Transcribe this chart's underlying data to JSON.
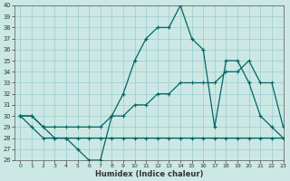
{
  "xlabel": "Humidex (Indice chaleur)",
  "bg_color": "#cce8e4",
  "grid_color": "#99cccc",
  "line_color": "#006666",
  "x_values": [
    0,
    1,
    2,
    3,
    4,
    5,
    6,
    7,
    8,
    9,
    10,
    11,
    12,
    13,
    14,
    15,
    16,
    17,
    18,
    19,
    20,
    21,
    22,
    23
  ],
  "line1": [
    30,
    30,
    29,
    28,
    28,
    27,
    26,
    26,
    30,
    32,
    35,
    37,
    38,
    38,
    40,
    37,
    36,
    29,
    35,
    35,
    33,
    30,
    29,
    28
  ],
  "line2": [
    30,
    30,
    29,
    29,
    29,
    29,
    29,
    29,
    30,
    30,
    31,
    31,
    32,
    32,
    33,
    33,
    33,
    33,
    34,
    34,
    35,
    33,
    33,
    29
  ],
  "line3": [
    30,
    29,
    28,
    28,
    28,
    28,
    28,
    28,
    28,
    28,
    28,
    28,
    28,
    28,
    28,
    28,
    28,
    28,
    28,
    28,
    28,
    28,
    28,
    28
  ],
  "ylim": [
    26,
    40
  ],
  "xlim": [
    -0.5,
    23
  ],
  "yticks": [
    26,
    27,
    28,
    29,
    30,
    31,
    32,
    33,
    34,
    35,
    36,
    37,
    38,
    39,
    40
  ],
  "xticks": [
    0,
    1,
    2,
    3,
    4,
    5,
    6,
    7,
    8,
    9,
    10,
    11,
    12,
    13,
    14,
    15,
    16,
    17,
    18,
    19,
    20,
    21,
    22,
    23
  ]
}
